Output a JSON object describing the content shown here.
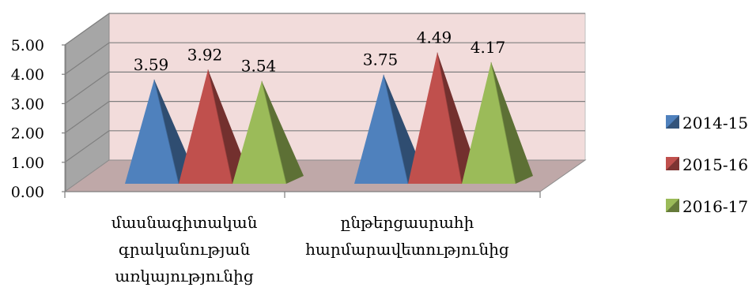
{
  "chart_data": {
    "type": "bar",
    "subtype": "3d-pyramid",
    "title": "",
    "xlabel": "",
    "ylabel": "",
    "ylim": [
      0,
      5
    ],
    "y_ticks": [
      "0.00",
      "1.00",
      "2.00",
      "3.00",
      "4.00",
      "5.00"
    ],
    "grid": true,
    "legend_position": "right",
    "categories": [
      [
        "մասնագիտական",
        "գրականության",
        "առկայությունից"
      ],
      [
        "ընթերցասրահի",
        "հարմարավետությունից"
      ]
    ],
    "series": [
      {
        "name": "2014-15",
        "values": [
          3.59,
          3.75
        ],
        "labels": [
          "3.59",
          "3.75"
        ],
        "color": "#4f81bd"
      },
      {
        "name": "2015-16",
        "values": [
          3.92,
          4.49
        ],
        "labels": [
          "3.92",
          "4.49"
        ],
        "color": "#c0504d"
      },
      {
        "name": "2016-17",
        "values": [
          3.54,
          4.17
        ],
        "labels": [
          "3.54",
          "4.17"
        ],
        "color": "#9bbb59"
      }
    ],
    "colors": {
      "back_wall": "#f2dcdb",
      "side_wall": "#a6a6a6",
      "floor": "#bfa8a8",
      "gridline": "#7f7f7f"
    }
  }
}
